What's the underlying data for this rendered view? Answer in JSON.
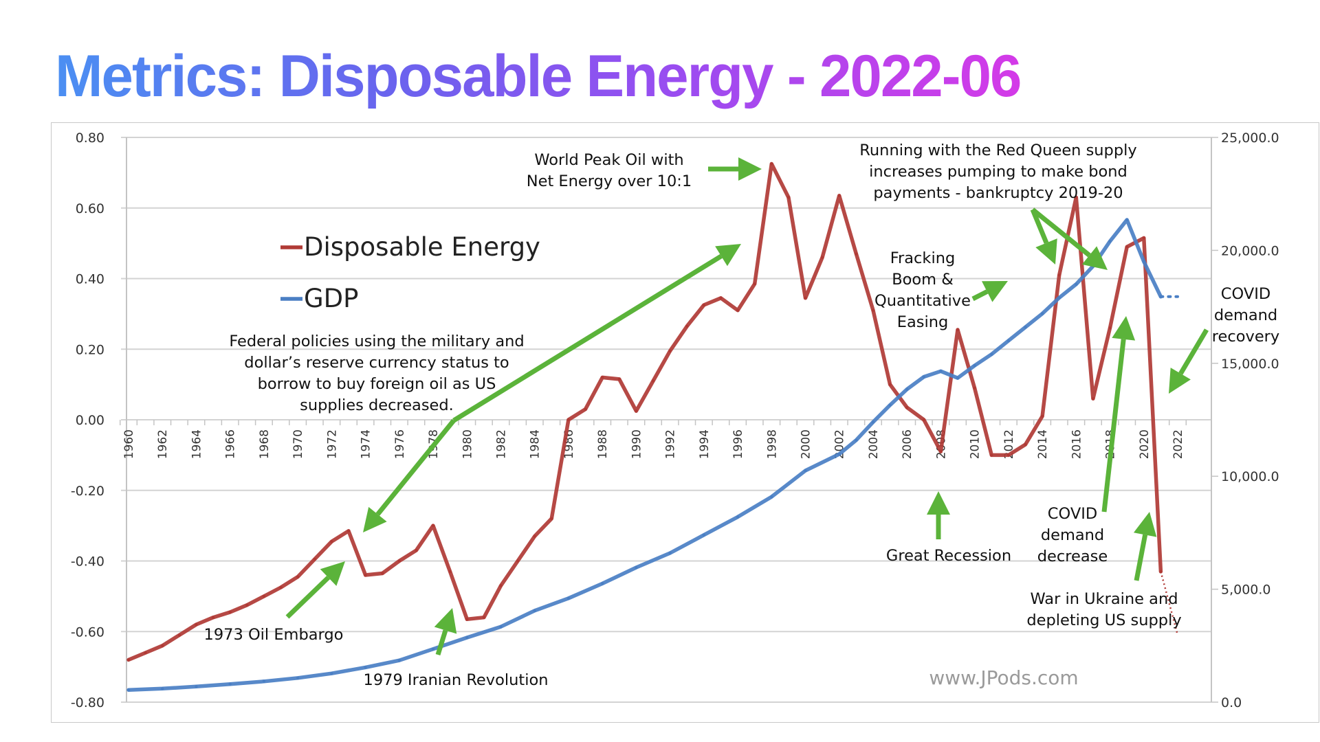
{
  "page": {
    "title": "Metrics: Disposable Energy - 2022-06"
  },
  "colors": {
    "title_gradient": [
      "#4b8ff2",
      "#6a63ee",
      "#9b4cf0",
      "#d43ae8"
    ],
    "disposable_energy": "#b03a35",
    "gdp": "#4a7fc4",
    "arrow": "#5bb33a",
    "grid": "#d3d3d3"
  },
  "chart_data": {
    "type": "line",
    "title": "Metrics: Disposable Energy - 2022-06",
    "xlabel": "",
    "ylabel": "",
    "y2label": "",
    "x_ticks": [
      1960,
      1962,
      1964,
      1966,
      1968,
      1970,
      1972,
      1974,
      1976,
      1978,
      1980,
      1982,
      1984,
      1986,
      1988,
      1990,
      1992,
      1994,
      1996,
      1998,
      2000,
      2002,
      2004,
      2006,
      2008,
      2010,
      2012,
      2014,
      2016,
      2018,
      2020,
      2022
    ],
    "x_range": [
      1960,
      2022
    ],
    "y_left": {
      "range": [
        -0.8,
        0.8
      ],
      "ticks": [
        "0.80",
        "0.60",
        "0.40",
        "0.20",
        "0.00",
        "-0.20",
        "-0.40",
        "-0.60",
        "-0.80"
      ],
      "tick_values": [
        0.8,
        0.6,
        0.4,
        0.2,
        0.0,
        -0.2,
        -0.4,
        -0.6,
        -0.8
      ]
    },
    "y_right": {
      "range": [
        0,
        25000
      ],
      "ticks": [
        "25,000.0",
        "20,000.0",
        "15,000.0",
        "10,000.0",
        "5,000.0",
        "0.0"
      ],
      "tick_values": [
        25000,
        20000,
        15000,
        10000,
        5000,
        0
      ]
    },
    "grid": true,
    "legend_position": "upper-left",
    "series": [
      {
        "name": "Disposable Energy",
        "axis": "left",
        "color": "#b03a35",
        "x": [
          1960,
          1961,
          1962,
          1963,
          1964,
          1965,
          1966,
          1967,
          1968,
          1969,
          1970,
          1971,
          1972,
          1973,
          1974,
          1975,
          1976,
          1977,
          1978,
          1979,
          1980,
          1981,
          1982,
          1983,
          1984,
          1985,
          1986,
          1987,
          1988,
          1989,
          1990,
          1991,
          1992,
          1993,
          1994,
          1995,
          1996,
          1997,
          1998,
          1999,
          2000,
          2001,
          2002,
          2003,
          2004,
          2005,
          2006,
          2007,
          2008,
          2009,
          2010,
          2011,
          2012,
          2013,
          2014,
          2015,
          2016,
          2017,
          2018,
          2019,
          2020,
          2021
        ],
        "values": [
          -0.68,
          -0.66,
          -0.64,
          -0.61,
          -0.58,
          -0.56,
          -0.545,
          -0.525,
          -0.5,
          -0.475,
          -0.445,
          -0.395,
          -0.345,
          -0.315,
          -0.44,
          -0.435,
          -0.4,
          -0.37,
          -0.3,
          -0.43,
          -0.565,
          -0.56,
          -0.47,
          -0.4,
          -0.33,
          -0.28,
          0.0,
          0.03,
          0.12,
          0.115,
          0.025,
          0.11,
          0.195,
          0.265,
          0.325,
          0.345,
          0.31,
          0.385,
          0.725,
          0.63,
          0.345,
          0.46,
          0.635,
          0.47,
          0.31,
          0.1,
          0.035,
          0.0,
          -0.09,
          0.255,
          0.09,
          -0.1,
          -0.1,
          -0.07,
          0.01,
          0.41,
          0.63,
          0.06,
          0.26,
          0.49,
          0.515,
          -0.43
        ],
        "projection": {
          "x": [
            2021,
            2022
          ],
          "values": [
            -0.43,
            -0.61
          ],
          "style": "dotted"
        }
      },
      {
        "name": "GDP",
        "axis": "right",
        "color": "#4a7fc4",
        "x": [
          1960,
          1962,
          1964,
          1966,
          1968,
          1970,
          1972,
          1974,
          1976,
          1978,
          1980,
          1982,
          1984,
          1986,
          1988,
          1990,
          1992,
          1994,
          1996,
          1998,
          2000,
          2002,
          2003,
          2004,
          2005,
          2006,
          2007,
          2008,
          2009,
          2010,
          2011,
          2012,
          2013,
          2014,
          2015,
          2016,
          2017,
          2018,
          2019,
          2020,
          2021
        ],
        "values": [
          540,
          600,
          690,
          800,
          920,
          1070,
          1270,
          1540,
          1850,
          2350,
          2860,
          3340,
          4050,
          4600,
          5250,
          5960,
          6600,
          7400,
          8200,
          9090,
          10250,
          10980,
          11600,
          12400,
          13150,
          13850,
          14400,
          14650,
          14350,
          14900,
          15400,
          16000,
          16600,
          17200,
          17900,
          18500,
          19300,
          20400,
          21350,
          19500,
          17950
        ],
        "projection": {
          "x": [
            2021,
            2022
          ],
          "values": [
            17950,
            17950
          ],
          "style": "dotted"
        }
      }
    ],
    "annotations": [
      {
        "id": "peak-oil",
        "lines": [
          "World Peak Oil with",
          "Net Energy over 10:1"
        ]
      },
      {
        "id": "red-queen",
        "lines": [
          "Running with the Red Queen supply",
          "increases pumping to make bond",
          "payments - bankruptcy 2019-20"
        ]
      },
      {
        "id": "fracking",
        "lines": [
          "Fracking",
          "Boom &",
          "Quantitative",
          "Easing"
        ]
      },
      {
        "id": "federal",
        "lines": [
          "Federal policies using the military and",
          "dollar’s reserve currency status to",
          "borrow to buy foreign oil as US",
          "supplies decreased."
        ]
      },
      {
        "id": "covid-recovery",
        "lines": [
          "COVID",
          "demand",
          "recovery"
        ]
      },
      {
        "id": "covid-decrease",
        "lines": [
          "COVID",
          "demand",
          "decrease"
        ]
      },
      {
        "id": "great-recession",
        "lines": [
          "Great Recession"
        ]
      },
      {
        "id": "ukraine",
        "lines": [
          "War in Ukraine and",
          "depleting US supply"
        ]
      },
      {
        "id": "oil-embargo",
        "lines": [
          "1973 Oil Embargo"
        ]
      },
      {
        "id": "iranian-revolution",
        "lines": [
          "1979 Iranian Revolution"
        ]
      }
    ],
    "watermark": "www.JPods.com"
  }
}
